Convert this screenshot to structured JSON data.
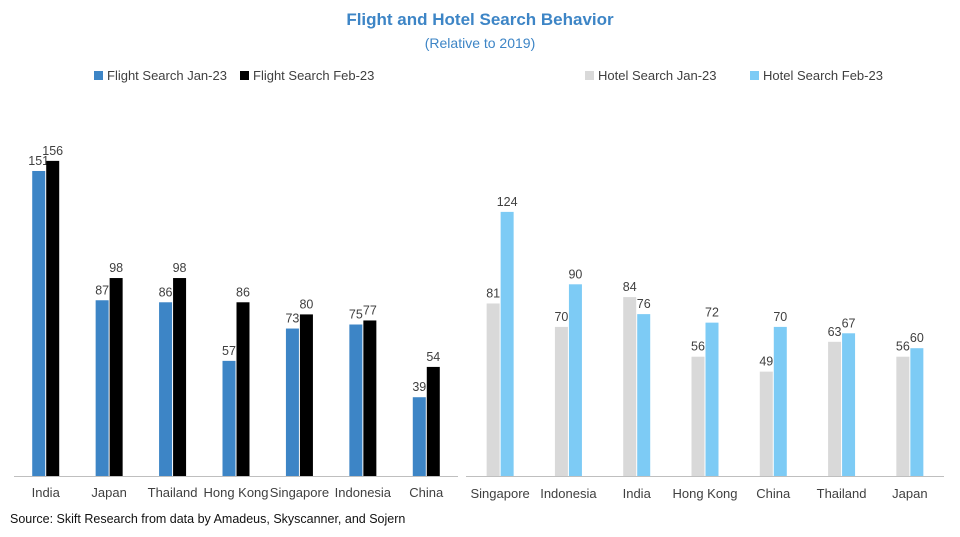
{
  "title": "Flight and Hotel Search Behavior",
  "subtitle": "(Relative to 2019)",
  "source": "Source: Skift Research from data by Amadeus, Skyscanner, and Sojern",
  "colors": {
    "flight_jan": "#3d85c6",
    "flight_feb": "#000000",
    "hotel_jan": "#d9d9d9",
    "hotel_feb": "#7dcbf5",
    "title": "#3d85c6"
  },
  "legend": [
    {
      "label": "Flight Search Jan-23",
      "color": "#3d85c6"
    },
    {
      "label": "Flight Search Feb-23",
      "color": "#000000"
    },
    {
      "label": "Hotel Search Jan-23",
      "color": "#d9d9d9"
    },
    {
      "label": "Hotel Search Feb-23",
      "color": "#7dcbf5"
    }
  ],
  "chart_data": [
    {
      "type": "bar",
      "categories": [
        "India",
        "Japan",
        "Thailand",
        "Hong Kong",
        "Singapore",
        "Indonesia",
        "China"
      ],
      "series": [
        {
          "name": "Flight Search Jan-23",
          "color": "#3d85c6",
          "values": [
            151,
            87,
            86,
            57,
            73,
            75,
            39
          ]
        },
        {
          "name": "Flight Search Feb-23",
          "color": "#000000",
          "values": [
            156,
            98,
            98,
            86,
            80,
            77,
            54
          ]
        }
      ],
      "ylim": [
        0,
        160
      ]
    },
    {
      "type": "bar",
      "categories": [
        "Singapore",
        "Indonesia",
        "India",
        "Hong Kong",
        "China",
        "Thailand",
        "Japan"
      ],
      "series": [
        {
          "name": "Hotel Search Jan-23",
          "color": "#d9d9d9",
          "values": [
            81,
            70,
            84,
            56,
            49,
            63,
            56
          ]
        },
        {
          "name": "Hotel Search Feb-23",
          "color": "#7dcbf5",
          "values": [
            124,
            90,
            76,
            72,
            70,
            67,
            60
          ]
        }
      ],
      "ylim": [
        0,
        160
      ]
    }
  ]
}
